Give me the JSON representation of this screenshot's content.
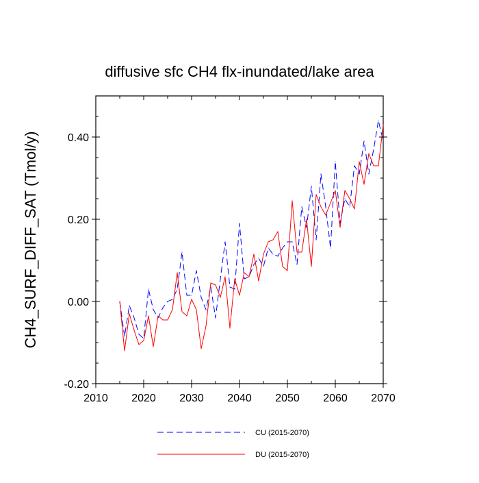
{
  "chart_data": {
    "type": "line",
    "title": "diffusive sfc CH4 flx-inundated/lake area",
    "xlabel": "",
    "ylabel": "CH4_SURF_DIFF_SAT  (Tmol/y)",
    "xlim": [
      2010,
      2070
    ],
    "ylim": [
      -0.2,
      0.5
    ],
    "xticks": [
      2010,
      2020,
      2030,
      2040,
      2050,
      2060,
      2070
    ],
    "xtick_labels": [
      "2010",
      "2020",
      "2030",
      "2040",
      "2050",
      "2060",
      "2070"
    ],
    "yticks": [
      -0.2,
      0.0,
      0.2,
      0.4
    ],
    "ytick_labels": [
      "-0.20",
      "0.00",
      "0.20",
      "0.40"
    ],
    "legend_position": "bottom-center",
    "x": [
      2015,
      2016,
      2017,
      2018,
      2019,
      2020,
      2021,
      2022,
      2023,
      2024,
      2025,
      2026,
      2027,
      2028,
      2029,
      2030,
      2031,
      2032,
      2033,
      2034,
      2035,
      2036,
      2037,
      2038,
      2039,
      2040,
      2041,
      2042,
      2043,
      2044,
      2045,
      2046,
      2047,
      2048,
      2049,
      2050,
      2051,
      2052,
      2053,
      2054,
      2055,
      2056,
      2057,
      2058,
      2059,
      2060,
      2061,
      2062,
      2063,
      2064,
      2065,
      2066,
      2067,
      2068,
      2069,
      2070
    ],
    "series": [
      {
        "name": "CU (2015-2070)",
        "color": "#0000ff",
        "dash": "dashed",
        "values": [
          0.0,
          -0.085,
          -0.01,
          -0.04,
          -0.08,
          -0.09,
          0.03,
          -0.02,
          -0.04,
          -0.015,
          0.0,
          0.005,
          0.03,
          0.12,
          0.015,
          0.015,
          0.075,
          0.01,
          -0.02,
          0.035,
          -0.04,
          0.055,
          0.145,
          0.035,
          0.03,
          0.19,
          0.055,
          0.06,
          0.09,
          0.105,
          0.085,
          0.13,
          0.115,
          0.11,
          0.13,
          0.145,
          0.145,
          0.09,
          0.23,
          0.18,
          0.28,
          0.15,
          0.31,
          0.23,
          0.13,
          0.34,
          0.19,
          0.25,
          0.23,
          0.33,
          0.31,
          0.39,
          0.31,
          0.37,
          0.44,
          0.39
        ]
      },
      {
        "name": "DU (2015-2070)",
        "color": "#ff0000",
        "dash": "solid",
        "values": [
          0.0,
          -0.12,
          -0.03,
          -0.07,
          -0.105,
          -0.095,
          -0.035,
          -0.11,
          -0.035,
          -0.045,
          -0.045,
          -0.02,
          0.07,
          -0.025,
          -0.035,
          0.005,
          -0.02,
          -0.115,
          -0.06,
          0.045,
          0.04,
          0.01,
          0.06,
          -0.065,
          0.055,
          0.015,
          0.07,
          0.06,
          0.115,
          0.05,
          0.115,
          0.145,
          0.15,
          0.17,
          0.085,
          0.075,
          0.245,
          0.12,
          0.12,
          0.2,
          0.085,
          0.26,
          0.23,
          0.21,
          0.24,
          0.27,
          0.18,
          0.27,
          0.25,
          0.225,
          0.34,
          0.285,
          0.36,
          0.33,
          0.33,
          0.43
        ]
      }
    ]
  }
}
